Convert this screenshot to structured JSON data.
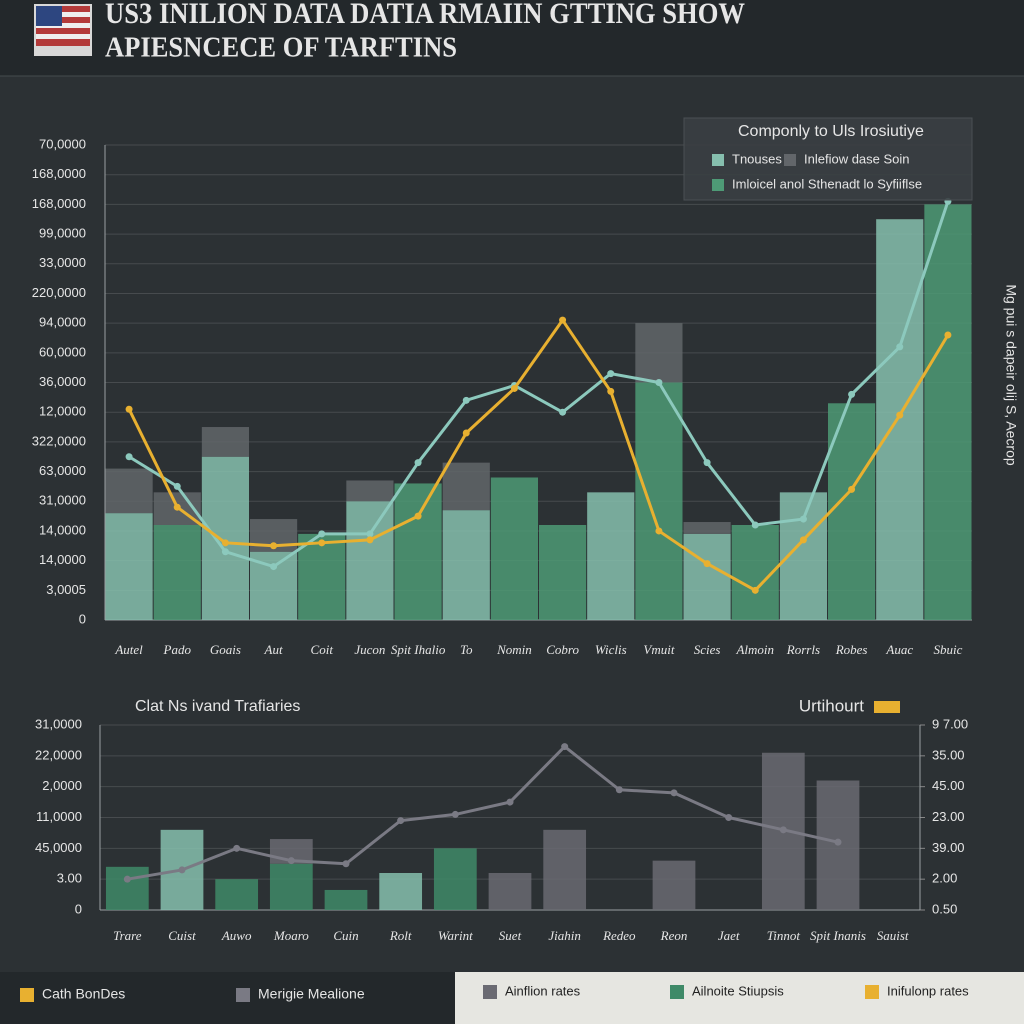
{
  "header": {
    "title_lines": [
      "US3 INILION DATA DATIA RMAIIN GTTING SHOW",
      "APIESNCECE OF TARFTINS"
    ]
  },
  "chart_data": [
    {
      "type": "bar",
      "legend_title": "Componly to Uls Irosiutiye",
      "y_axis_label_right": "Mg pui s dapeir olij S, Aecrop",
      "categories": [
        "Autel",
        "Pado",
        "Goais",
        "Aut",
        "Coit",
        "Jucon",
        "Spit Ihalio",
        "To",
        "Nomin",
        "Cobro",
        "Wiclis",
        "Vmuit",
        "Scies",
        "Almoin",
        "Rorrls",
        "Robes",
        "Auac",
        "Sbuic"
      ],
      "ylim": [
        0,
        16
      ],
      "yticks": [
        0,
        {
          "value": 1,
          "label": "3,0005"
        },
        {
          "value": 2,
          "label": "14,0000"
        },
        {
          "value": 3,
          "label": "14,0000"
        },
        {
          "value": 4,
          "label": "31,0000"
        },
        {
          "value": 5,
          "label": "63,0000"
        },
        {
          "value": 6,
          "label": "322,0000"
        },
        {
          "value": 7,
          "label": "12,0000"
        },
        {
          "value": 8,
          "label": "36,0000"
        },
        {
          "value": 9,
          "label": "60,0000"
        },
        {
          "value": 10,
          "label": "94,0000"
        },
        {
          "value": 11,
          "label": "220,0000"
        },
        {
          "value": 12,
          "label": "33,0000"
        },
        {
          "value": 13,
          "label": "99,0000"
        },
        {
          "value": 14,
          "label": "168,0000"
        },
        {
          "value": 15,
          "label": "168,0000"
        },
        {
          "value": 16,
          "label": "70,0000"
        }
      ],
      "grid": true,
      "series": [
        {
          "name": "Tnouses",
          "type": "bar",
          "color": "#86bfae",
          "values": [
            3.6,
            null,
            5.5,
            2.3,
            null,
            4.0,
            null,
            3.7,
            null,
            null,
            4.3,
            null,
            2.9,
            null,
            4.3,
            null,
            13.5,
            null
          ]
        },
        {
          "name": "Imloicel anol Sthenadt lo Syfiiflse",
          "type": "bar",
          "color": "#4e9a76",
          "values": [
            null,
            3.2,
            null,
            null,
            2.9,
            null,
            4.6,
            null,
            4.8,
            3.2,
            null,
            8.0,
            null,
            3.2,
            null,
            7.3,
            null,
            14.0
          ]
        },
        {
          "name": "Inlefiow dase Soin",
          "type": "bar",
          "color": "#62666a",
          "values": [
            1.5,
            1.1,
            1.0,
            1.1,
            null,
            0.7,
            null,
            1.6,
            null,
            null,
            null,
            2.0,
            0.4,
            null,
            null,
            null,
            null,
            null
          ]
        },
        {
          "type": "line",
          "color": "#8cc9bd",
          "values": [
            5.5,
            4.5,
            2.3,
            1.8,
            2.9,
            2.9,
            5.3,
            7.4,
            7.9,
            7.0,
            8.3,
            8.0,
            5.3,
            3.2,
            3.4,
            7.6,
            9.2,
            14.1
          ]
        },
        {
          "type": "line",
          "color": "#e8b030",
          "values": [
            7.1,
            3.8,
            2.6,
            2.5,
            2.6,
            2.7,
            3.5,
            6.3,
            7.8,
            10.1,
            7.7,
            3.0,
            1.9,
            1.0,
            2.7,
            4.4,
            6.9,
            9.6
          ]
        }
      ]
    },
    {
      "type": "bar",
      "title": "Clat Ns ivand Trafiaries",
      "legend": [
        {
          "label": "Urtihourt",
          "color": "#e8b030"
        }
      ],
      "categories": [
        "Trare",
        "Cuist",
        "Auwo",
        "Moaro",
        "Cuin",
        "Rolt",
        "Warint",
        "Suet",
        "Jiahin",
        "Redeo",
        "Reon",
        "Jaet",
        "Tinnot",
        "Spit Inanis",
        "Sauist"
      ],
      "ylim": [
        0,
        6
      ],
      "yticks": [
        0,
        {
          "value": 1,
          "label": "3.00"
        },
        {
          "value": 2,
          "label": "45,0000"
        },
        {
          "value": 3,
          "label": "11,0000"
        },
        {
          "value": 4,
          "label": "2,0000"
        },
        {
          "value": 5,
          "label": "22,0000"
        },
        {
          "value": 6,
          "label": "31,0000"
        }
      ],
      "y2lim": [
        0,
        6
      ],
      "y2ticks": [
        {
          "value": 0,
          "label": "0.50"
        },
        {
          "value": 1,
          "label": "2.00"
        },
        {
          "value": 2,
          "label": "39.00"
        },
        {
          "value": 3,
          "label": "23.00"
        },
        {
          "value": 4,
          "label": "45.00"
        },
        {
          "value": 5,
          "label": "35.00"
        },
        {
          "value": 6,
          "label": "9 7.00"
        }
      ],
      "grid": true,
      "series": [
        {
          "type": "bar",
          "color": "#3f8a68",
          "values": [
            1.4,
            null,
            1.0,
            1.5,
            0.65,
            null,
            2.0,
            null,
            null,
            null,
            null,
            null,
            null,
            null,
            null
          ]
        },
        {
          "type": "bar",
          "color": "#86bfae",
          "values": [
            null,
            2.6,
            null,
            null,
            null,
            1.2,
            null,
            null,
            null,
            null,
            null,
            null,
            null,
            null,
            null
          ]
        },
        {
          "type": "bar",
          "color": "#6a6a72",
          "values": [
            null,
            null,
            null,
            0.8,
            null,
            null,
            null,
            1.2,
            2.6,
            null,
            1.6,
            null,
            5.1,
            4.2,
            null
          ]
        },
        {
          "type": "line",
          "color": "#7a7a84",
          "values": [
            1.0,
            1.3,
            2.0,
            1.6,
            1.5,
            2.9,
            3.1,
            3.5,
            5.3,
            3.9,
            3.8,
            3.0,
            2.6,
            2.2,
            null
          ]
        }
      ]
    }
  ],
  "footer": {
    "left": [
      {
        "label": "Cath BonDes",
        "color": "#e8b030"
      },
      {
        "label": "Merigie Mealione",
        "color": "#7a7a84"
      }
    ],
    "right": [
      {
        "label": "Ainflion rates",
        "color": "#6a6a72"
      },
      {
        "label": "Ailnoite Stiupsis",
        "color": "#3f8a68"
      },
      {
        "label": "Inifulonp rates",
        "color": "#e8b030"
      }
    ]
  }
}
